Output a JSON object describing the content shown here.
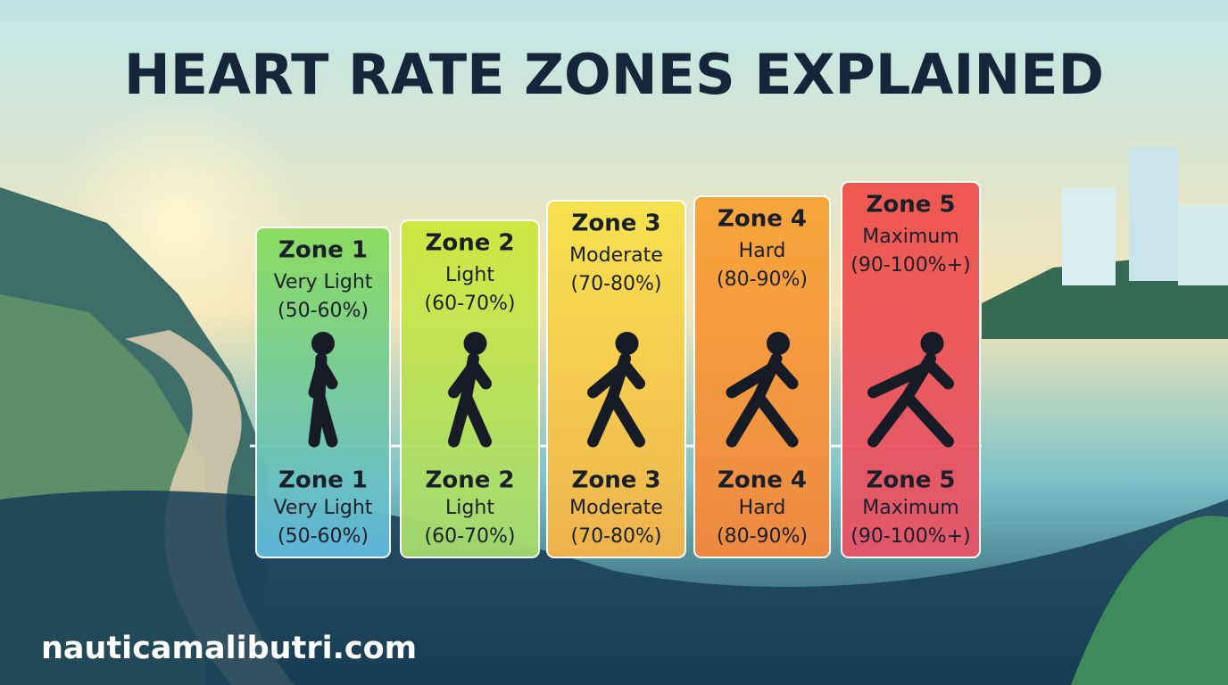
{
  "title": "HEART RATE ZONES EXPLAINED",
  "zones": [
    {
      "name": "Zone 1",
      "intensity": "Very Light",
      "range": "(50-60%)"
    },
    {
      "name": "Zone 2",
      "intensity": "Light",
      "range": "(60-70%)"
    },
    {
      "name": "Zone 3",
      "intensity": "Moderate",
      "range": "(70-80%)"
    },
    {
      "name": "Zone 4",
      "intensity": "Hard",
      "range": "(80-90%)"
    },
    {
      "name": "Zone 5",
      "intensity": "Maximum",
      "range": "(90-100%+)"
    }
  ],
  "footer": "nauticamalibutri.com"
}
